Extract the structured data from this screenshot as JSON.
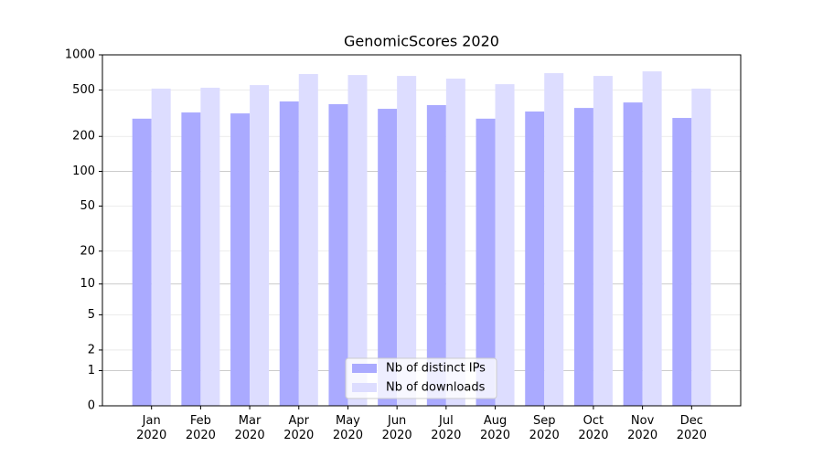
{
  "chart_data": {
    "type": "bar",
    "title": "GenomicScores 2020",
    "categories": [
      "Jan\n2020",
      "Feb\n2020",
      "Mar\n2020",
      "Apr\n2020",
      "May\n2020",
      "Jun\n2020",
      "Jul\n2020",
      "Aug\n2020",
      "Sep\n2020",
      "Oct\n2020",
      "Nov\n2020",
      "Dec\n2020"
    ],
    "series": [
      {
        "name": "Nb of distinct IPs",
        "color": "#aaaaff",
        "values": [
          284,
          321,
          315,
          399,
          378,
          345,
          371,
          284,
          327,
          351,
          391,
          288
        ]
      },
      {
        "name": "Nb of downloads",
        "color": "#ddddff",
        "values": [
          514,
          523,
          551,
          685,
          672,
          660,
          626,
          561,
          697,
          660,
          722,
          514
        ]
      }
    ],
    "yscale": "log1p",
    "ylim": [
      0,
      1000
    ],
    "yticks": [
      0,
      1,
      2,
      5,
      10,
      20,
      50,
      100,
      200,
      500,
      1000
    ],
    "grid": true,
    "legend": "lower center"
  }
}
